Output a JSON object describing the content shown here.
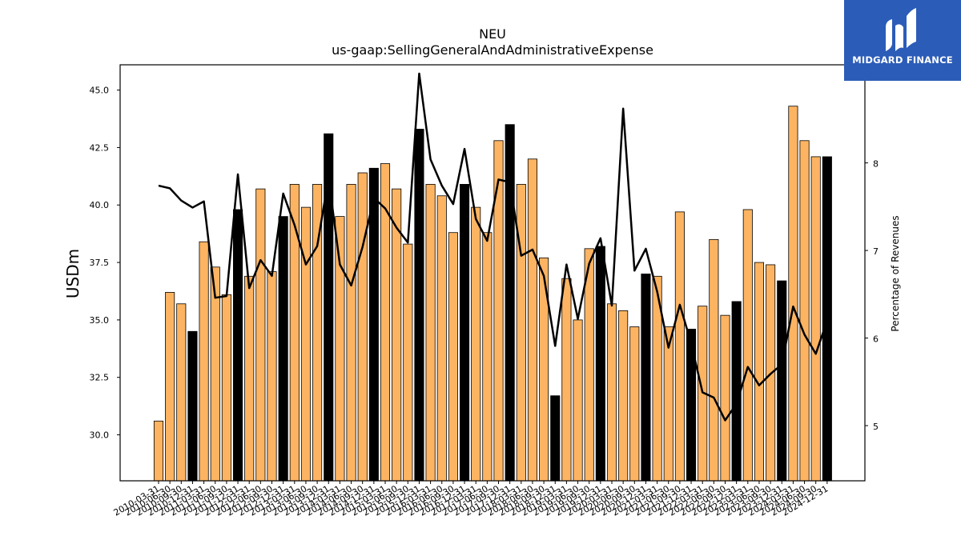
{
  "logo": {
    "text": "MIDGARD FINANCE"
  },
  "chart_data": {
    "type": "bar",
    "title": "NEU",
    "subtitle": "us-gaap:SellingGeneralAndAdministrativeExpense",
    "ylabel": "USDm",
    "y2label": "Percentage of Revenues",
    "ylim": [
      28.0,
      46.1
    ],
    "y2lim": [
      4.37,
      9.12
    ],
    "yticks": [
      "30.0",
      "32.5",
      "35.0",
      "37.5",
      "40.0",
      "42.5",
      "45.0"
    ],
    "y2ticks": [
      "5",
      "6",
      "7",
      "8",
      "9"
    ],
    "colors": {
      "quarter": "#fdb462",
      "year": "#000000",
      "line": "#000000"
    },
    "categories": [
      "2010-03-31",
      "2010-06-30",
      "2010-09-30",
      "2010-12-31",
      "2011-03-31",
      "2011-06-30",
      "2011-09-30",
      "2011-12-31",
      "2012-03-31",
      "2012-06-30",
      "2012-09-30",
      "2012-12-31",
      "2013-03-31",
      "2013-06-30",
      "2013-09-30",
      "2013-12-31",
      "2014-03-31",
      "2014-06-30",
      "2014-09-30",
      "2014-12-31",
      "2015-03-31",
      "2015-06-30",
      "2015-09-30",
      "2015-12-31",
      "2016-03-31",
      "2016-06-30",
      "2016-09-30",
      "2016-12-31",
      "2017-03-31",
      "2017-06-30",
      "2017-09-30",
      "2017-12-31",
      "2018-03-31",
      "2018-06-30",
      "2018-09-30",
      "2018-12-31",
      "2019-03-31",
      "2019-06-30",
      "2019-09-30",
      "2019-12-31",
      "2020-03-31",
      "2020-06-30",
      "2020-09-30",
      "2020-12-31",
      "2021-03-31",
      "2021-06-30",
      "2021-09-30",
      "2021-12-31",
      "2022-03-31",
      "2022-06-30",
      "2022-09-30",
      "2022-12-31",
      "2023-03-31",
      "2023-06-30",
      "2023-09-30",
      "2023-12-31",
      "2024-03-31",
      "2024-06-30",
      "2024-09-30",
      "2024-12-31"
    ],
    "series": [
      {
        "values": [
          30.6,
          36.2,
          35.7,
          34.5,
          38.4,
          37.3,
          36.1,
          39.8,
          36.9,
          40.7,
          37.1,
          39.5,
          40.9,
          39.9,
          40.9,
          43.1,
          39.5,
          40.9,
          41.4,
          41.6,
          41.8,
          40.7,
          38.3,
          43.3,
          40.9,
          40.4,
          38.8,
          40.9,
          39.9,
          38.8,
          42.8,
          43.5,
          40.9,
          42.0,
          37.7,
          31.7,
          36.8,
          35.0,
          38.1,
          38.2,
          35.7,
          35.4,
          34.7,
          37.0,
          36.9,
          34.7,
          39.7,
          34.6,
          35.6,
          38.5,
          35.2,
          35.8,
          39.8,
          37.5,
          37.4,
          36.7,
          44.3,
          42.8,
          42.1,
          42.1
        ]
      },
      {
        "values": [
          7.74,
          7.71,
          7.57,
          7.49,
          7.56,
          6.46,
          6.48,
          7.87,
          6.57,
          6.89,
          6.71,
          7.65,
          7.29,
          6.84,
          7.05,
          7.83,
          6.84,
          6.6,
          7.04,
          7.6,
          7.48,
          7.26,
          7.09,
          9.02,
          8.04,
          7.74,
          7.53,
          8.16,
          7.36,
          7.11,
          7.81,
          7.78,
          6.94,
          7.01,
          6.71,
          5.91,
          6.84,
          6.22,
          6.85,
          7.14,
          6.37,
          8.62,
          6.77,
          7.02,
          6.53,
          5.89,
          6.38,
          5.94,
          5.38,
          5.32,
          5.06,
          5.25,
          5.67,
          5.46,
          5.59,
          5.7,
          6.36,
          6.04,
          5.82,
          6.2
        ]
      }
    ]
  }
}
